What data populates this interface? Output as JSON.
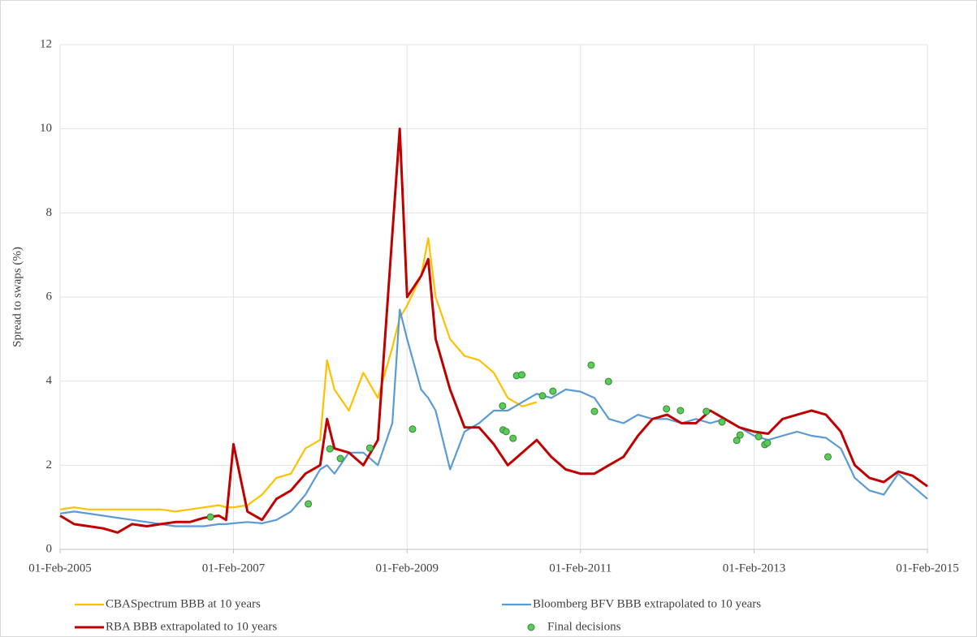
{
  "chart_data": {
    "type": "line",
    "y_label": "Spread to swaps (%)",
    "x": [
      "2005-02-01",
      "2005-04-01",
      "2005-06-01",
      "2005-08-01",
      "2005-10-01",
      "2005-12-01",
      "2006-02-01",
      "2006-04-01",
      "2006-06-01",
      "2006-08-01",
      "2006-10-01",
      "2006-12-01",
      "2007-01-01",
      "2007-02-01",
      "2007-04-01",
      "2007-06-01",
      "2007-08-01",
      "2007-10-01",
      "2007-12-01",
      "2008-02-01",
      "2008-03-01",
      "2008-04-01",
      "2008-06-01",
      "2008-08-01",
      "2008-10-01",
      "2008-12-01",
      "2009-01-01",
      "2009-02-01",
      "2009-04-01",
      "2009-05-01",
      "2009-06-01",
      "2009-08-01",
      "2009-10-01",
      "2009-12-01",
      "2010-02-01",
      "2010-04-01",
      "2010-06-01",
      "2010-08-01",
      "2010-10-01",
      "2010-12-01",
      "2011-02-01",
      "2011-04-01",
      "2011-06-01",
      "2011-08-01",
      "2011-10-01",
      "2011-12-01",
      "2012-02-01",
      "2012-04-01",
      "2012-06-01",
      "2012-08-01",
      "2012-10-01",
      "2012-12-01",
      "2013-02-01",
      "2013-04-01",
      "2013-06-01",
      "2013-08-01",
      "2013-10-01",
      "2013-12-01",
      "2014-02-01",
      "2014-04-01",
      "2014-06-01",
      "2014-08-01",
      "2014-10-01",
      "2014-12-01",
      "2015-02-01"
    ],
    "series": [
      {
        "name": "CBASpectrum BBB at 10 years",
        "color": "#ffc000",
        "values": [
          0.95,
          1.0,
          0.95,
          0.95,
          0.95,
          0.95,
          0.95,
          0.95,
          0.9,
          0.95,
          1.0,
          1.05,
          1.0,
          1.0,
          1.05,
          1.3,
          1.7,
          1.8,
          2.4,
          2.6,
          4.5,
          3.8,
          3.3,
          4.2,
          3.6,
          4.8,
          5.5,
          5.8,
          6.5,
          7.4,
          6.0,
          5.0,
          4.6,
          4.5,
          4.2,
          3.6,
          3.4,
          3.5,
          null,
          null,
          null,
          null,
          null,
          null,
          null,
          null,
          null,
          null,
          null,
          null,
          null,
          null,
          null,
          null,
          null,
          null,
          null,
          null,
          null,
          null,
          null,
          null,
          null,
          null,
          null
        ]
      },
      {
        "name": "Bloomberg BFV BBB extrapolated to 10 years",
        "color": "#5b9bd5",
        "values": [
          0.85,
          0.9,
          0.85,
          0.8,
          0.75,
          0.7,
          0.65,
          0.6,
          0.55,
          0.55,
          0.55,
          0.6,
          0.6,
          0.62,
          0.65,
          0.62,
          0.7,
          0.9,
          1.3,
          1.9,
          2.0,
          1.8,
          2.3,
          2.3,
          2.0,
          3.0,
          5.7,
          5.0,
          3.8,
          3.6,
          3.3,
          1.9,
          2.8,
          3.0,
          3.3,
          3.3,
          3.5,
          3.7,
          3.6,
          3.8,
          3.75,
          3.6,
          3.1,
          3.0,
          3.2,
          3.1,
          3.1,
          3.0,
          3.1,
          3.0,
          3.1,
          2.9,
          2.7,
          2.6,
          2.7,
          2.8,
          2.7,
          2.65,
          2.4,
          1.7,
          1.4,
          1.3,
          1.8,
          1.5,
          1.2
        ]
      },
      {
        "name": "RBA BBB extrapolated to 10 years",
        "color": "#c00000",
        "values": [
          0.8,
          0.6,
          0.55,
          0.5,
          0.4,
          0.6,
          0.55,
          0.6,
          0.65,
          0.65,
          0.75,
          0.8,
          0.7,
          2.5,
          0.9,
          0.7,
          1.2,
          1.4,
          1.8,
          2.0,
          3.1,
          2.4,
          2.3,
          2.0,
          2.6,
          7.5,
          10.0,
          6.0,
          6.5,
          6.9,
          5.0,
          3.8,
          2.9,
          2.9,
          2.5,
          2.0,
          2.3,
          2.6,
          2.2,
          1.9,
          1.8,
          1.8,
          2.0,
          2.2,
          2.7,
          3.1,
          3.2,
          3.0,
          3.0,
          3.3,
          3.1,
          2.9,
          2.8,
          2.75,
          3.1,
          3.2,
          3.3,
          3.2,
          2.8,
          2.0,
          1.7,
          1.6,
          1.85,
          1.75,
          1.5
        ]
      },
      {
        "name": "Final decisions",
        "type": "scatter",
        "color": "#5dc95d",
        "x": [
          "2006-10-27",
          "2007-12-13",
          "2008-03-13",
          "2008-04-26",
          "2008-08-28",
          "2009-02-24",
          "2010-03-10",
          "2010-03-12",
          "2010-03-25",
          "2010-04-23",
          "2010-05-08",
          "2010-05-30",
          "2010-08-25",
          "2010-10-08",
          "2011-03-18",
          "2011-04-01",
          "2011-05-30",
          "2012-01-29",
          "2012-03-28",
          "2012-07-15",
          "2012-09-19",
          "2012-11-20",
          "2012-12-04",
          "2013-02-20",
          "2013-03-18",
          "2013-03-29",
          "2013-12-09"
        ],
        "values": [
          0.77,
          1.08,
          2.39,
          2.16,
          2.41,
          2.86,
          3.41,
          2.84,
          2.8,
          2.64,
          4.13,
          4.15,
          3.65,
          3.76,
          4.38,
          3.28,
          3.99,
          3.34,
          3.3,
          3.28,
          3.03,
          2.59,
          2.72,
          2.68,
          2.49,
          2.53,
          2.2
        ]
      }
    ],
    "xlim": [
      "2005-02-01",
      "2015-02-01"
    ],
    "xticks": [
      {
        "value": "2005-02-01",
        "label": "01-Feb-2005"
      },
      {
        "value": "2007-02-01",
        "label": "01-Feb-2007"
      },
      {
        "value": "2009-02-01",
        "label": "01-Feb-2009"
      },
      {
        "value": "2011-02-01",
        "label": "01-Feb-2011"
      },
      {
        "value": "2013-02-01",
        "label": "01-Feb-2013"
      },
      {
        "value": "2015-02-01",
        "label": "01-Feb-2015"
      }
    ],
    "ylim": [
      0,
      12
    ],
    "yticks": [
      0,
      2,
      4,
      6,
      8,
      10,
      12
    ],
    "grid": true,
    "legend": "bottom"
  }
}
